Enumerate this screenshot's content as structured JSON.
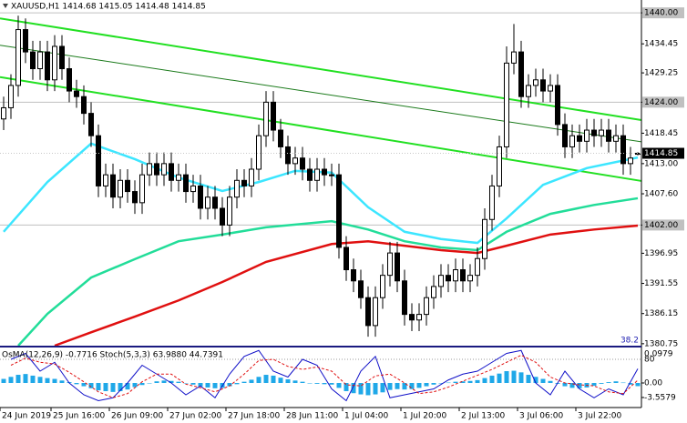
{
  "chart_data": {
    "type": "candlestick",
    "title": "XAUUSD,H1  1414.68 1415.05 1414.48 1414.85",
    "open": [
      1421,
      1423,
      1427,
      1437,
      1433,
      1430,
      1433,
      1428,
      1434,
      1430,
      1426,
      1425,
      1422,
      1418,
      1409,
      1411,
      1407,
      1410,
      1408,
      1406,
      1411,
      1413,
      1411,
      1413,
      1410,
      1411,
      1408,
      1409,
      1405,
      1407,
      1405,
      1402,
      1407,
      1410,
      1409,
      1412,
      1418,
      1424,
      1419,
      1416,
      1413,
      1414,
      1412,
      1410,
      1412,
      1411,
      1411,
      1398,
      1394,
      1392,
      1389,
      1384,
      1389,
      1393,
      1397,
      1392,
      1386,
      1385,
      1386,
      1389,
      1391,
      1393,
      1392,
      1394,
      1392,
      1393,
      1396,
      1403,
      1409,
      1416,
      1431,
      1433,
      1425,
      1427,
      1428,
      1426,
      1427,
      1420,
      1416,
      1418,
      1417,
      1419,
      1418,
      1419,
      1417,
      1418,
      1413,
      1414.68
    ],
    "high": [
      1425,
      1429,
      1439.5,
      1439,
      1435,
      1435,
      1435,
      1436,
      1436,
      1432,
      1428,
      1427,
      1424,
      1420,
      1413,
      1413,
      1412,
      1412,
      1410,
      1413,
      1415,
      1415,
      1415,
      1415,
      1413,
      1413,
      1411,
      1411,
      1409,
      1409,
      1407,
      1409,
      1412,
      1412,
      1414,
      1420,
      1426,
      1426,
      1421,
      1418,
      1416,
      1416,
      1414,
      1414,
      1414,
      1413,
      1413,
      1400,
      1396,
      1394,
      1391,
      1391,
      1395,
      1399,
      1399,
      1394,
      1388,
      1388,
      1391,
      1393,
      1395,
      1395,
      1396,
      1396,
      1395,
      1398,
      1405,
      1411,
      1418,
      1434,
      1438,
      1435,
      1429,
      1430,
      1430,
      1429,
      1429,
      1422,
      1420,
      1420,
      1421,
      1421,
      1421,
      1421,
      1420,
      1420,
      1416,
      1415.05
    ],
    "low": [
      1419,
      1421,
      1425,
      1431,
      1428,
      1428,
      1426,
      1426,
      1428,
      1424,
      1423,
      1420,
      1416,
      1407,
      1407,
      1405,
      1405,
      1406,
      1404,
      1404,
      1409,
      1409,
      1409,
      1408,
      1408,
      1406,
      1406,
      1403,
      1403,
      1403,
      1400,
      1400,
      1405,
      1407,
      1407,
      1410,
      1416,
      1417,
      1414,
      1411,
      1411,
      1410,
      1408,
      1408,
      1409,
      1409,
      1396,
      1392,
      1390,
      1387,
      1382,
      1382,
      1387,
      1391,
      1390,
      1384,
      1383,
      1383,
      1384,
      1387,
      1389,
      1390,
      1390,
      1390,
      1390,
      1391,
      1394,
      1401,
      1407,
      1414,
      1429,
      1423,
      1423,
      1425,
      1424,
      1424,
      1418,
      1414,
      1414,
      1415,
      1415,
      1416,
      1416,
      1415,
      1415,
      1411,
      1411,
      1414.48
    ],
    "close": [
      1423,
      1427,
      1437,
      1433,
      1430,
      1433,
      1428,
      1434,
      1430,
      1426,
      1425,
      1422,
      1418,
      1409,
      1411,
      1407,
      1410,
      1408,
      1406,
      1411,
      1413,
      1411,
      1413,
      1410,
      1411,
      1408,
      1409,
      1405,
      1407,
      1405,
      1402,
      1407,
      1410,
      1409,
      1412,
      1418,
      1424,
      1419,
      1416,
      1413,
      1414,
      1412,
      1410,
      1412,
      1411,
      1411,
      1398,
      1394,
      1392,
      1389,
      1384,
      1389,
      1393,
      1397,
      1392,
      1386,
      1385,
      1386,
      1389,
      1391,
      1393,
      1392,
      1394,
      1392,
      1393,
      1396,
      1403,
      1409,
      1416,
      1431,
      1433,
      1425,
      1427,
      1428,
      1426,
      1427,
      1420,
      1416,
      1418,
      1417,
      1419,
      1418,
      1419,
      1417,
      1418,
      1413,
      1414,
      1414.85
    ],
    "ylim": [
      1380.4,
      1442.3
    ],
    "yticks": [
      {
        "value": 1440,
        "label": "1440.00"
      },
      {
        "value": 1434.45,
        "label": "1434.45"
      },
      {
        "value": 1429.25,
        "label": "1429.25"
      },
      {
        "value": 1424,
        "label": "1424.00"
      },
      {
        "value": 1418.45,
        "label": "1418.45"
      },
      {
        "value": 1413,
        "label": "1413.00"
      },
      {
        "value": 1407.6,
        "label": "1407.60"
      },
      {
        "value": 1402,
        "label": "1402.00"
      },
      {
        "value": 1396.95,
        "label": "1396.95"
      },
      {
        "value": 1391.55,
        "label": "1391.55"
      },
      {
        "value": 1386.15,
        "label": "1386.15"
      },
      {
        "value": 1380.75,
        "label": "1380.75"
      }
    ],
    "xticks": [
      {
        "value": 0,
        "label": "24 Jun 2019"
      },
      {
        "value": 7,
        "label": "25 Jun 16:00"
      },
      {
        "value": 15,
        "label": "26 Jun 09:00"
      },
      {
        "value": 23,
        "label": "27 Jun 02:00"
      },
      {
        "value": 31,
        "label": "27 Jun 18:00"
      },
      {
        "value": 39,
        "label": "28 Jun 11:00"
      },
      {
        "value": 47,
        "label": "1 Jul 04:00"
      },
      {
        "value": 55,
        "label": "1 Jul 20:00"
      },
      {
        "value": 63,
        "label": "2 Jul 13:00"
      },
      {
        "value": 71,
        "label": "3 Jul 06:00"
      },
      {
        "value": 79,
        "label": "3 Jul 22:00"
      }
    ],
    "levels": [
      1440,
      1424,
      1402
    ],
    "last_price": 1414.85,
    "fib_label": "38.2",
    "moving_averages": [
      {
        "color": "#3ce6ff",
        "x": [
          0,
          6,
          12,
          18,
          24,
          30,
          35,
          40,
          45,
          50,
          55,
          60,
          65,
          69,
          74,
          80,
          87
        ],
        "values": [
          1400.8,
          1409.7,
          1416.6,
          1413.8,
          1410.5,
          1408.1,
          1409.7,
          1411.7,
          1411.4,
          1405.2,
          1400.8,
          1399.5,
          1398.8,
          1403.2,
          1409.2,
          1412.2,
          1414.1
        ]
      },
      {
        "color": "#22dd99",
        "x": [
          2,
          6,
          12,
          18,
          24,
          30,
          36,
          45,
          50,
          55,
          60,
          65,
          69,
          75,
          81,
          87
        ],
        "values": [
          1380.4,
          1386.1,
          1392.6,
          1395.9,
          1399.1,
          1400.3,
          1401.6,
          1402.7,
          1401.2,
          1399.1,
          1398.0,
          1397.5,
          1400.8,
          1404.0,
          1405.6,
          1406.8
        ]
      },
      {
        "color": "#e01010",
        "x": [
          7,
          12,
          18,
          24,
          30,
          36,
          45,
          50,
          55,
          60,
          65,
          69,
          75,
          81,
          87
        ],
        "values": [
          1380.4,
          1382.8,
          1385.6,
          1388.5,
          1391.8,
          1395.4,
          1398.6,
          1399.1,
          1398.3,
          1397.5,
          1397.0,
          1398.3,
          1400.3,
          1401.2,
          1401.9
        ]
      }
    ],
    "channels": [
      {
        "color": "#22e022",
        "x": [
          0,
          87
        ],
        "values": [
          1438.9,
          1420.9
        ]
      },
      {
        "color": "#1a7a1a",
        "x": [
          0,
          87
        ],
        "values": [
          1434.1,
          1417.0
        ]
      },
      {
        "color": "#22e022",
        "x": [
          0,
          87
        ],
        "values": [
          1428.4,
          1410.0
        ]
      }
    ],
    "indicator": {
      "label": "OsMA(12,26,9) -0.7716  Stoch(5,3,3) 63.9880 44.7391",
      "osma_top_label": "0.0979",
      "osma": {
        "color": "#1fa8e8",
        "values": [
          1.0,
          1.5,
          2.0,
          2.2,
          1.8,
          1.5,
          1.2,
          1.0,
          0.6,
          0.2,
          -0.3,
          -0.8,
          -1.3,
          -1.8,
          -2.0,
          -2.2,
          -2.0,
          -1.6,
          -1.0,
          -0.5,
          0.0,
          0.4,
          0.6,
          0.5,
          0.3,
          0.0,
          -0.4,
          -0.8,
          -1.1,
          -1.3,
          -1.2,
          -0.8,
          -0.3,
          0.3,
          0.8,
          1.5,
          2.0,
          1.8,
          1.3,
          0.9,
          0.6,
          0.3,
          0.0,
          -0.2,
          -0.3,
          -0.4,
          -1.2,
          -2.0,
          -2.5,
          -2.8,
          -3.0,
          -2.8,
          -2.3,
          -1.7,
          -1.5,
          -1.6,
          -1.5,
          -1.2,
          -0.8,
          -0.4,
          -0.1,
          0.1,
          0.3,
          0.4,
          0.5,
          0.7,
          1.2,
          1.8,
          2.3,
          2.9,
          3.0,
          2.6,
          2.0,
          1.5,
          1.0,
          0.5,
          -0.2,
          -0.8,
          -1.2,
          -1.3,
          -1.1,
          -0.7,
          -0.2,
          0.2,
          0.4,
          0.1,
          -0.4,
          -0.7716
        ]
      },
      "osma_ylim": [
        -5.8,
        8.7
      ],
      "osma_yticks": [
        {
          "value": 0,
          "label": "0.00"
        },
        -3.5579
      ],
      "stoch_ylim": [
        0,
        100
      ],
      "stoch_yticks": [
        80
      ],
      "stoch_x": [
        1,
        3,
        5,
        7,
        9,
        11,
        13,
        15,
        17,
        19,
        21,
        23,
        25,
        27,
        29,
        31,
        33,
        35,
        37,
        39,
        41,
        43,
        45,
        47,
        49,
        51,
        53,
        55,
        57,
        59,
        61,
        63,
        65,
        67,
        69,
        71,
        73,
        75,
        77,
        79,
        81,
        83,
        85,
        87
      ],
      "stoch_main": {
        "color": "#1010c8",
        "values": [
          80,
          90,
          60,
          75,
          40,
          20,
          10,
          15,
          40,
          70,
          55,
          40,
          20,
          35,
          15,
          55,
          85,
          95,
          60,
          50,
          80,
          70,
          30,
          10,
          60,
          85,
          15,
          20,
          25,
          30,
          45,
          55,
          60,
          75,
          90,
          95,
          40,
          20,
          60,
          30,
          15,
          30,
          20,
          63.988
        ]
      },
      "stoch_signal": {
        "color": "#e01010",
        "values": [
          70,
          82,
          75,
          72,
          58,
          42,
          25,
          15,
          22,
          42,
          55,
          55,
          38,
          32,
          25,
          35,
          55,
          78,
          80,
          68,
          63,
          67,
          60,
          37,
          35,
          52,
          55,
          40,
          22,
          25,
          33,
          43,
          53,
          63,
          75,
          87,
          75,
          50,
          40,
          37,
          35,
          25,
          22,
          44.7391
        ]
      }
    }
  }
}
